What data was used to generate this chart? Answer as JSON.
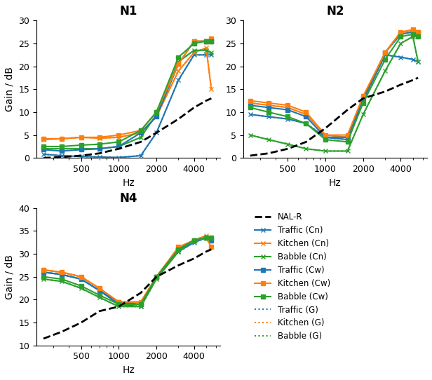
{
  "freqs": [
    250,
    350,
    500,
    700,
    1000,
    1500,
    2000,
    3000,
    4000,
    5000,
    5500
  ],
  "N1": {
    "NALR": [
      0.0,
      0.2,
      0.5,
      1.0,
      2.0,
      3.5,
      5.5,
      8.5,
      11.0,
      12.5,
      13.0
    ],
    "Traffic_Cn": [
      0.8,
      0.5,
      0.3,
      0.2,
      0.1,
      0.5,
      5.5,
      17.0,
      22.5,
      22.5,
      22.5
    ],
    "Kitchen_Cn": [
      4.0,
      4.2,
      4.5,
      4.3,
      4.5,
      5.5,
      9.0,
      19.0,
      23.0,
      24.0,
      15.0
    ],
    "Babble_Cn": [
      2.0,
      2.0,
      2.0,
      2.0,
      2.5,
      4.5,
      9.5,
      21.0,
      23.5,
      23.5,
      23.0
    ],
    "Traffic_Cw": [
      1.8,
      1.5,
      1.8,
      2.0,
      2.5,
      5.5,
      9.0,
      20.5,
      25.5,
      25.5,
      25.5
    ],
    "Kitchen_Cw": [
      4.2,
      4.2,
      4.5,
      4.5,
      5.0,
      6.0,
      10.0,
      20.5,
      25.5,
      25.5,
      26.0
    ],
    "Babble_Cw": [
      2.5,
      2.5,
      2.8,
      3.0,
      3.5,
      6.0,
      10.0,
      22.0,
      25.0,
      25.5,
      25.5
    ],
    "Traffic_G": [
      0.8,
      0.5,
      0.3,
      0.2,
      0.1,
      0.5,
      5.5,
      17.0,
      22.5,
      22.5,
      22.5
    ],
    "Kitchen_G": [
      4.0,
      4.2,
      4.5,
      4.3,
      4.5,
      5.5,
      9.0,
      19.0,
      23.0,
      24.0,
      15.0
    ],
    "Babble_G": [
      2.0,
      2.0,
      2.0,
      2.0,
      2.5,
      4.5,
      9.5,
      21.0,
      23.5,
      23.5,
      23.0
    ],
    "ylim": [
      0,
      30
    ]
  },
  "N2": {
    "NALR": [
      0.5,
      1.0,
      2.0,
      3.5,
      6.5,
      10.5,
      13.0,
      14.5,
      16.0,
      17.0,
      17.5
    ],
    "Traffic_Cn": [
      9.5,
      9.0,
      8.5,
      7.5,
      4.5,
      4.0,
      12.5,
      22.5,
      22.0,
      21.5,
      21.0
    ],
    "Kitchen_Cn": [
      12.0,
      11.5,
      11.0,
      9.5,
      5.0,
      4.5,
      13.0,
      23.0,
      27.5,
      27.5,
      27.0
    ],
    "Babble_Cn": [
      5.0,
      4.0,
      3.0,
      2.0,
      1.5,
      1.5,
      9.5,
      19.0,
      25.0,
      26.5,
      21.0
    ],
    "Traffic_Cw": [
      11.5,
      11.0,
      10.5,
      9.0,
      4.5,
      4.5,
      13.0,
      23.0,
      27.0,
      27.5,
      27.5
    ],
    "Kitchen_Cw": [
      12.5,
      12.0,
      11.5,
      10.0,
      5.0,
      5.0,
      13.5,
      23.0,
      27.5,
      28.0,
      27.5
    ],
    "Babble_Cw": [
      11.0,
      10.0,
      9.0,
      7.5,
      4.0,
      3.5,
      12.0,
      21.5,
      26.5,
      27.0,
      26.5
    ],
    "Traffic_G": [
      9.5,
      9.0,
      8.5,
      7.5,
      4.5,
      4.0,
      12.5,
      22.5,
      22.0,
      21.5,
      21.0
    ],
    "Kitchen_G": [
      12.0,
      11.5,
      11.0,
      9.5,
      5.0,
      4.5,
      13.0,
      23.0,
      27.5,
      27.5,
      27.0
    ],
    "Babble_G": [
      5.0,
      4.0,
      3.0,
      2.0,
      1.5,
      1.5,
      9.5,
      19.0,
      25.0,
      26.5,
      21.0
    ],
    "ylim": [
      0,
      30
    ]
  },
  "N4": {
    "NALR": [
      11.5,
      13.0,
      15.0,
      17.5,
      18.5,
      21.5,
      25.0,
      27.5,
      29.0,
      30.5,
      31.0
    ],
    "Traffic_Cn": [
      26.0,
      25.5,
      24.5,
      22.0,
      19.0,
      18.5,
      25.0,
      30.5,
      32.5,
      33.5,
      33.0
    ],
    "Kitchen_Cn": [
      26.5,
      26.0,
      25.0,
      22.5,
      19.5,
      19.5,
      25.0,
      31.0,
      33.0,
      34.0,
      33.5
    ],
    "Babble_Cn": [
      24.5,
      24.0,
      22.5,
      20.5,
      18.5,
      18.5,
      24.5,
      30.5,
      33.0,
      33.5,
      33.5
    ],
    "Traffic_Cw": [
      26.0,
      25.5,
      24.5,
      22.0,
      19.5,
      19.0,
      25.0,
      31.0,
      33.0,
      33.5,
      33.0
    ],
    "Kitchen_Cw": [
      26.5,
      26.0,
      25.0,
      22.5,
      19.5,
      19.5,
      25.0,
      31.5,
      33.0,
      33.5,
      31.5
    ],
    "Babble_Cw": [
      25.0,
      24.5,
      23.0,
      21.0,
      19.0,
      19.0,
      25.0,
      31.0,
      33.0,
      33.5,
      33.5
    ],
    "Traffic_G": [
      26.0,
      25.5,
      24.5,
      22.0,
      19.0,
      18.5,
      25.0,
      30.5,
      32.5,
      33.5,
      33.0
    ],
    "Kitchen_G": [
      26.5,
      26.0,
      25.0,
      22.5,
      19.5,
      19.5,
      25.0,
      31.0,
      33.0,
      34.0,
      33.5
    ],
    "Babble_G": [
      24.5,
      24.0,
      22.5,
      20.5,
      18.5,
      18.5,
      24.5,
      30.5,
      33.0,
      33.5,
      33.5
    ],
    "ylim": [
      10,
      40
    ]
  },
  "colors": {
    "blue": "#1f77b4",
    "orange": "#ff7f0e",
    "green": "#2ca02c"
  },
  "xticks": [
    500,
    1000,
    2000,
    4000
  ],
  "xlim": [
    220,
    6500
  ],
  "legend_items": [
    {
      "label": "NAL-R",
      "color": "black",
      "ls": "--",
      "lw": 2.0,
      "marker": "none"
    },
    {
      "label": "Traffic (Cn)",
      "color": "#1f77b4",
      "ls": "-",
      "lw": 1.5,
      "marker": "x"
    },
    {
      "label": "Kitchen (Cn)",
      "color": "#ff7f0e",
      "ls": "-",
      "lw": 1.5,
      "marker": "x"
    },
    {
      "label": "Babble (Cn)",
      "color": "#2ca02c",
      "ls": "-",
      "lw": 1.5,
      "marker": "x"
    },
    {
      "label": "Traffic (Cw)",
      "color": "#1f77b4",
      "ls": "-",
      "lw": 1.5,
      "marker": "s"
    },
    {
      "label": "Kitchen (Cw)",
      "color": "#ff7f0e",
      "ls": "-",
      "lw": 1.5,
      "marker": "s"
    },
    {
      "label": "Babble (Cw)",
      "color": "#2ca02c",
      "ls": "-",
      "lw": 1.5,
      "marker": "s"
    },
    {
      "label": "Traffic (G)",
      "color": "#1f77b4",
      "ls": ":",
      "lw": 1.5,
      "marker": "none"
    },
    {
      "label": "Kitchen (G)",
      "color": "#ff7f0e",
      "ls": ":",
      "lw": 1.5,
      "marker": "none"
    },
    {
      "label": "Babble (G)",
      "color": "#2ca02c",
      "ls": ":",
      "lw": 1.5,
      "marker": "none"
    }
  ]
}
